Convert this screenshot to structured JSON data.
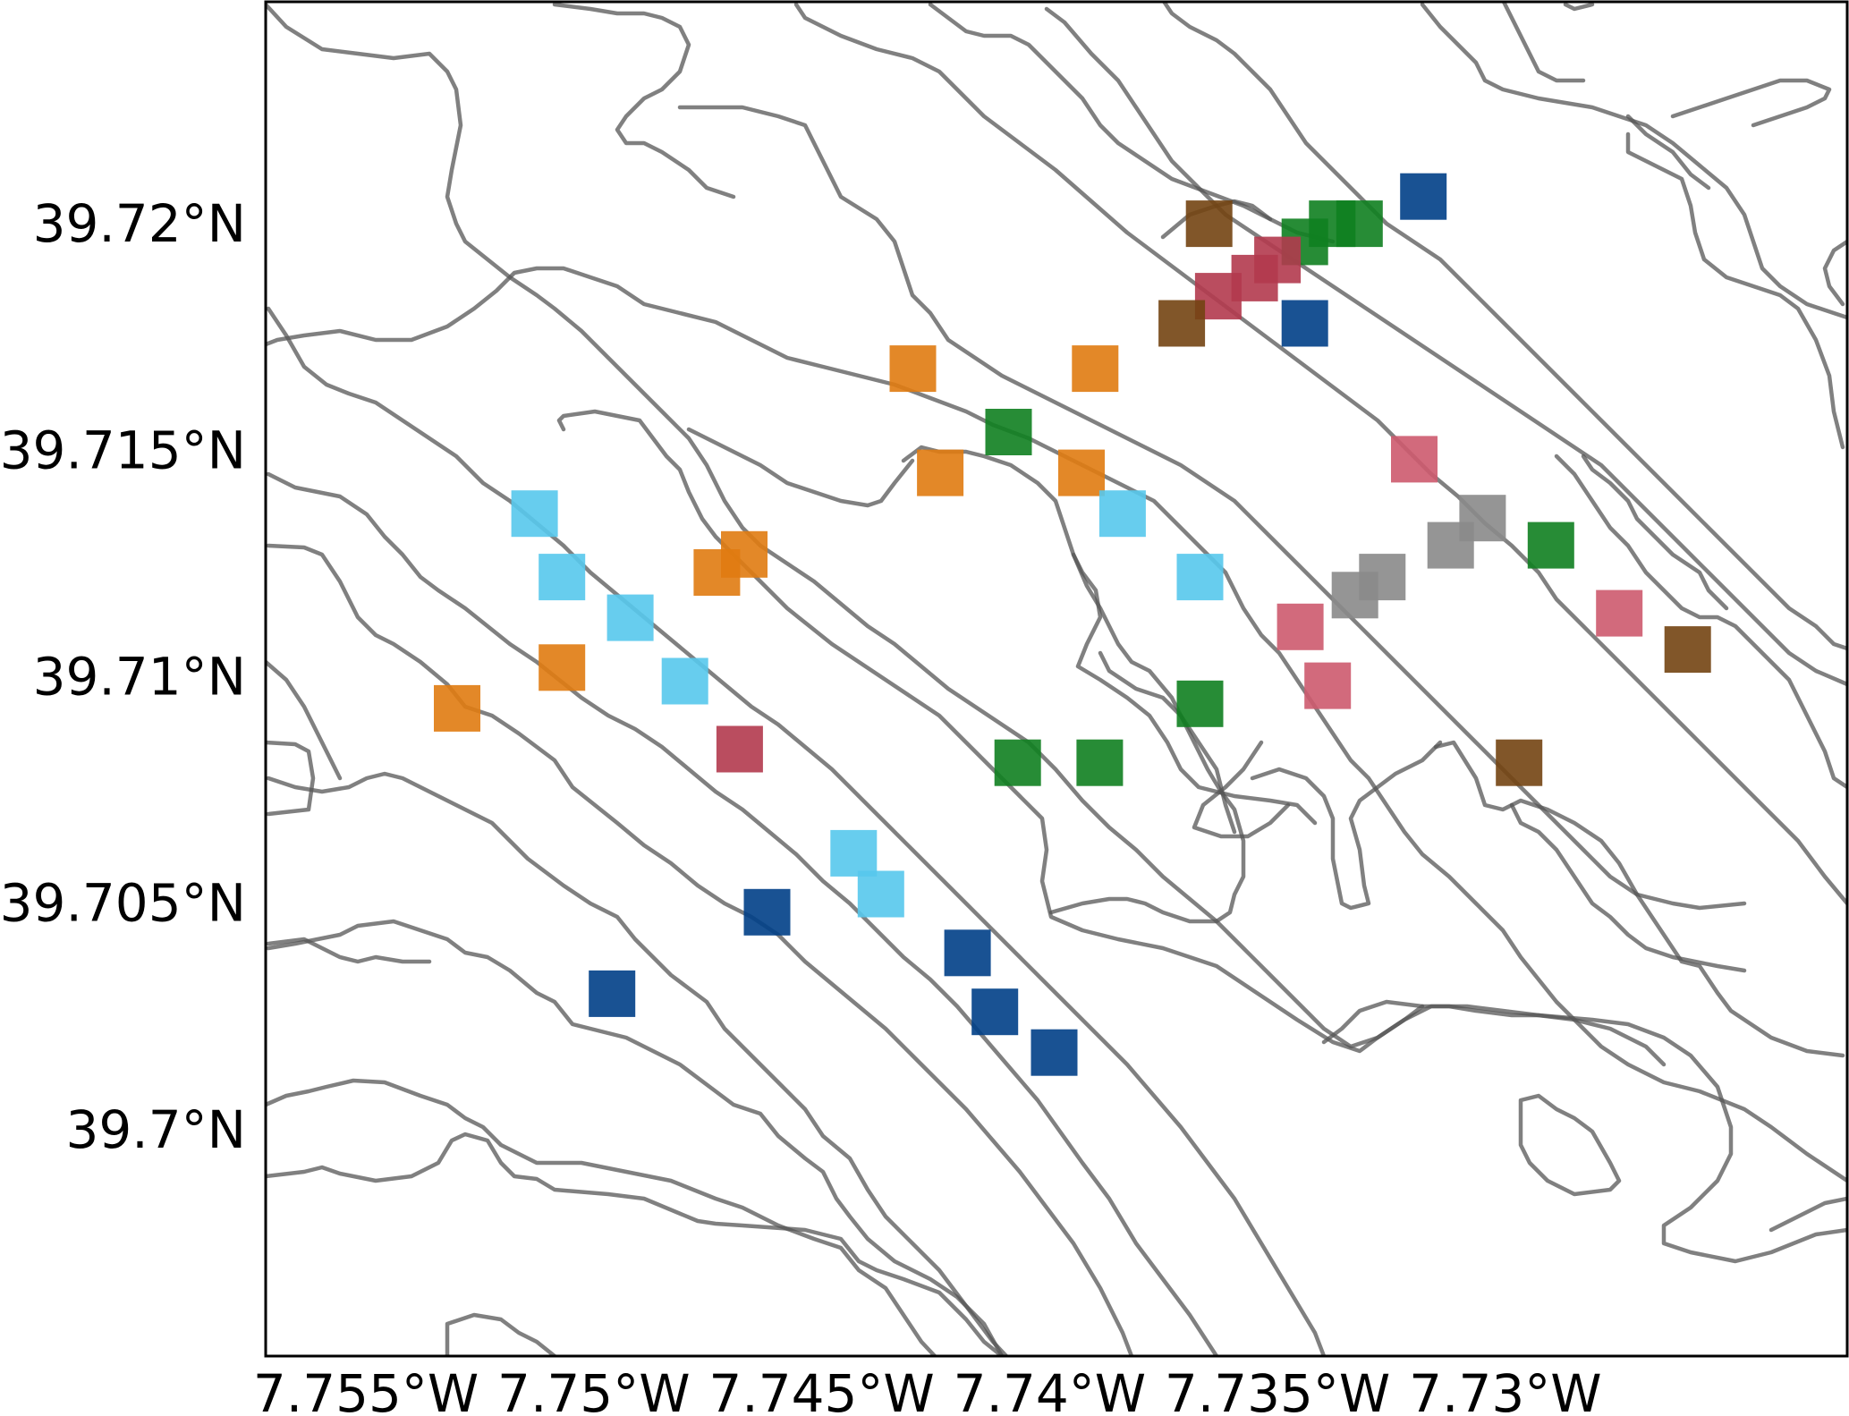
{
  "map": {
    "lat_ticks": [
      "39.72°N",
      "39.715°N",
      "39.71°N",
      "39.705°N",
      "39.7°N"
    ],
    "lon_ticks": [
      "7.755°W",
      "7.75°W",
      "7.745°W",
      "7.74°W",
      "7.735°W",
      "7.73°W"
    ],
    "lat_tick_values": [
      39.72,
      39.715,
      39.71,
      39.705,
      39.7
    ],
    "lon_tick_values": [
      -7.755,
      -7.75,
      -7.745,
      -7.74,
      -7.735,
      -7.73
    ],
    "extent": {
      "lon_min": -7.7572,
      "lon_max": -7.7225,
      "lat_min": 39.695,
      "lat_max": 39.7249
    },
    "contour_color": "#555555",
    "marker_shape": "square",
    "group_colors": {
      "orange": "#e07b11",
      "light-blue": "#56c8ec",
      "dark-blue": "#003f87",
      "green": "#0f8020",
      "red": "#b23a4e",
      "pink": "#cd5a6e",
      "brown": "#734412",
      "gray": "#8a8a8a"
    },
    "markers": [
      {
        "group": "brown",
        "lon": -7.7365,
        "lat": 39.72
      },
      {
        "group": "dark-blue",
        "lon": -7.7318,
        "lat": 39.7206
      },
      {
        "group": "green",
        "lon": -7.7332,
        "lat": 39.72
      },
      {
        "group": "green",
        "lon": -7.7338,
        "lat": 39.72
      },
      {
        "group": "green",
        "lon": -7.7344,
        "lat": 39.7196
      },
      {
        "group": "red",
        "lon": -7.735,
        "lat": 39.7192
      },
      {
        "group": "red",
        "lon": -7.7355,
        "lat": 39.7188
      },
      {
        "group": "red",
        "lon": -7.7363,
        "lat": 39.7184
      },
      {
        "group": "dark-blue",
        "lon": -7.7344,
        "lat": 39.7178
      },
      {
        "group": "brown",
        "lon": -7.7371,
        "lat": 39.7178
      },
      {
        "group": "orange",
        "lon": -7.743,
        "lat": 39.7168
      },
      {
        "group": "orange",
        "lon": -7.739,
        "lat": 39.7168
      },
      {
        "group": "green",
        "lon": -7.7409,
        "lat": 39.7154
      },
      {
        "group": "orange",
        "lon": -7.7424,
        "lat": 39.7145
      },
      {
        "group": "orange",
        "lon": -7.7393,
        "lat": 39.7145
      },
      {
        "group": "light-blue",
        "lon": -7.7384,
        "lat": 39.7136
      },
      {
        "group": "pink",
        "lon": -7.732,
        "lat": 39.7148
      },
      {
        "group": "gray",
        "lon": -7.7305,
        "lat": 39.7135
      },
      {
        "group": "gray",
        "lon": -7.7312,
        "lat": 39.7129
      },
      {
        "group": "green",
        "lon": -7.729,
        "lat": 39.7129
      },
      {
        "group": "light-blue",
        "lon": -7.7367,
        "lat": 39.7122
      },
      {
        "group": "gray",
        "lon": -7.7327,
        "lat": 39.7122
      },
      {
        "group": "gray",
        "lon": -7.7333,
        "lat": 39.7118
      },
      {
        "group": "pink",
        "lon": -7.7275,
        "lat": 39.7114
      },
      {
        "group": "pink",
        "lon": -7.7345,
        "lat": 39.7111
      },
      {
        "group": "brown",
        "lon": -7.726,
        "lat": 39.7106
      },
      {
        "group": "pink",
        "lon": -7.7339,
        "lat": 39.7098
      },
      {
        "group": "green",
        "lon": -7.7367,
        "lat": 39.7094
      },
      {
        "group": "green",
        "lon": -7.7407,
        "lat": 39.7081
      },
      {
        "group": "green",
        "lon": -7.7389,
        "lat": 39.7081
      },
      {
        "group": "brown",
        "lon": -7.7297,
        "lat": 39.7081
      },
      {
        "group": "light-blue",
        "lon": -7.7513,
        "lat": 39.7136
      },
      {
        "group": "light-blue",
        "lon": -7.7507,
        "lat": 39.7122
      },
      {
        "group": "light-blue",
        "lon": -7.7492,
        "lat": 39.7113
      },
      {
        "group": "orange",
        "lon": -7.7467,
        "lat": 39.7127
      },
      {
        "group": "orange",
        "lon": -7.7473,
        "lat": 39.7123
      },
      {
        "group": "orange",
        "lon": -7.7507,
        "lat": 39.7102
      },
      {
        "group": "orange",
        "lon": -7.753,
        "lat": 39.7093
      },
      {
        "group": "light-blue",
        "lon": -7.748,
        "lat": 39.7099
      },
      {
        "group": "red",
        "lon": -7.7468,
        "lat": 39.7084
      },
      {
        "group": "light-blue",
        "lon": -7.7443,
        "lat": 39.7061
      },
      {
        "group": "light-blue",
        "lon": -7.7437,
        "lat": 39.7052
      },
      {
        "group": "dark-blue",
        "lon": -7.7462,
        "lat": 39.7048
      },
      {
        "group": "dark-blue",
        "lon": -7.7496,
        "lat": 39.703
      },
      {
        "group": "dark-blue",
        "lon": -7.7418,
        "lat": 39.7039
      },
      {
        "group": "dark-blue",
        "lon": -7.7412,
        "lat": 39.7026
      },
      {
        "group": "dark-blue",
        "lon": -7.7399,
        "lat": 39.7017
      }
    ]
  }
}
